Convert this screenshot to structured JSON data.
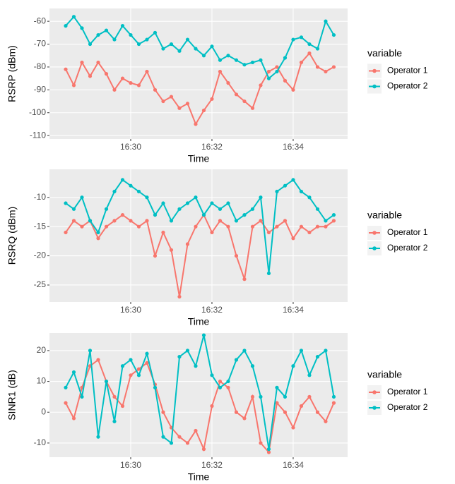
{
  "chart_data": [
    {
      "type": "line",
      "ylabel": "RSRP (dBm)",
      "xlabel": "Time",
      "legend_title": "variable",
      "grid": true,
      "x": [
        988.4,
        988.6,
        988.8,
        989.0,
        989.2,
        989.4,
        989.6,
        989.8,
        990.0,
        990.2,
        990.4,
        990.6,
        990.8,
        991.0,
        991.2,
        991.4,
        991.6,
        991.8,
        992.0,
        992.2,
        992.4,
        992.6,
        992.8,
        993.0,
        993.2,
        993.4,
        993.6,
        993.8,
        994.0,
        994.2,
        994.4,
        994.6,
        994.8,
        995.0
      ],
      "series": [
        {
          "name": "Operator 1",
          "color": "#F8766D",
          "values": [
            -81,
            -88,
            -78,
            -84,
            -78,
            -83,
            -90,
            -85,
            -87,
            -88,
            -82,
            -90,
            -95,
            -93,
            -98,
            -96,
            -105,
            -99,
            -94,
            -82,
            -87,
            -92,
            -95,
            -98,
            -88,
            -82,
            -80,
            -86,
            -90,
            -78,
            -74,
            -80,
            -82,
            -80
          ]
        },
        {
          "name": "Operator 2",
          "color": "#00BFC4",
          "values": [
            -62,
            -58,
            -63,
            -70,
            -66,
            -64,
            -68,
            -62,
            -66,
            -70,
            -68,
            -65,
            -72,
            -70,
            -73,
            -68,
            -72,
            -75,
            -71,
            -77,
            -75,
            -77,
            -79,
            -78,
            -77,
            -85,
            -82,
            -76,
            -68,
            -67,
            -70,
            -72,
            -60,
            -66
          ]
        }
      ],
      "xlim": [
        988.0,
        995.34
      ],
      "xticks": [
        {
          "value": 990,
          "label": "16:30"
        },
        {
          "value": 992,
          "label": "16:32"
        },
        {
          "value": 994,
          "label": "16:34"
        }
      ],
      "ylim": [
        -111.5,
        -54.4
      ],
      "yticks": [
        -110,
        -100,
        -90,
        -80,
        -70,
        -60
      ]
    },
    {
      "type": "line",
      "ylabel": "RSRQ (dBm)",
      "xlabel": "Time",
      "legend_title": "variable",
      "grid": true,
      "x": [
        988.4,
        988.6,
        988.8,
        989.0,
        989.2,
        989.4,
        989.6,
        989.8,
        990.0,
        990.2,
        990.4,
        990.6,
        990.8,
        991.0,
        991.2,
        991.4,
        991.6,
        991.8,
        992.0,
        992.2,
        992.4,
        992.6,
        992.8,
        993.0,
        993.2,
        993.4,
        993.6,
        993.8,
        994.0,
        994.2,
        994.4,
        994.6,
        994.8,
        995.0
      ],
      "series": [
        {
          "name": "Operator 1",
          "color": "#F8766D",
          "values": [
            -16,
            -14,
            -15,
            -14,
            -17,
            -15,
            -14,
            -13,
            -14,
            -15,
            -14,
            -20,
            -16,
            -19,
            -27,
            -18,
            -15,
            -13,
            -16,
            -14,
            -15,
            -20,
            -24,
            -15,
            -14,
            -16,
            -15,
            -14,
            -17,
            -15,
            -16,
            -15,
            -15,
            -14
          ]
        },
        {
          "name": "Operator 2",
          "color": "#00BFC4",
          "values": [
            -11,
            -12,
            -10,
            -14,
            -16,
            -12,
            -9,
            -7,
            -8,
            -9,
            -10,
            -13,
            -11,
            -14,
            -12,
            -11,
            -10,
            -13,
            -11,
            -12,
            -11,
            -14,
            -13,
            -12,
            -10,
            -23,
            -9,
            -8,
            -7,
            -9,
            -10,
            -12,
            -14,
            -13
          ]
        }
      ],
      "xlim": [
        988.0,
        995.34
      ],
      "xticks": [
        {
          "value": 990,
          "label": "16:30"
        },
        {
          "value": 992,
          "label": "16:32"
        },
        {
          "value": 994,
          "label": "16:34"
        }
      ],
      "ylim": [
        -27.9,
        -5.2
      ],
      "yticks": [
        -25,
        -20,
        -15,
        -10
      ]
    },
    {
      "type": "line",
      "ylabel": "SINR1 (dB)",
      "xlabel": "Time",
      "legend_title": "variable",
      "grid": true,
      "x": [
        988.4,
        988.6,
        988.8,
        989.0,
        989.2,
        989.4,
        989.6,
        989.8,
        990.0,
        990.2,
        990.4,
        990.6,
        990.8,
        991.0,
        991.2,
        991.4,
        991.6,
        991.8,
        992.0,
        992.2,
        992.4,
        992.6,
        992.8,
        993.0,
        993.2,
        993.4,
        993.6,
        993.8,
        994.0,
        994.2,
        994.4,
        994.6,
        994.8,
        995.0
      ],
      "series": [
        {
          "name": "Operator 1",
          "color": "#F8766D",
          "values": [
            3,
            -2,
            8,
            15,
            17,
            10,
            5,
            2,
            12,
            14,
            16,
            9,
            0,
            -5,
            -8,
            -10,
            -6,
            -12,
            2,
            10,
            8,
            0,
            -2,
            5,
            -10,
            -13,
            3,
            0,
            -5,
            2,
            5,
            0,
            -3,
            3
          ]
        },
        {
          "name": "Operator 2",
          "color": "#00BFC4",
          "values": [
            8,
            13,
            5,
            20,
            -8,
            10,
            -3,
            15,
            17,
            12,
            19,
            8,
            -8,
            -10,
            18,
            20,
            15,
            25,
            12,
            8,
            10,
            17,
            20,
            15,
            5,
            -12,
            8,
            5,
            15,
            20,
            12,
            18,
            20,
            5
          ]
        }
      ],
      "xlim": [
        988.0,
        995.34
      ],
      "xticks": [
        {
          "value": 990,
          "label": "16:30"
        },
        {
          "value": 992,
          "label": "16:32"
        },
        {
          "value": 994,
          "label": "16:34"
        }
      ],
      "ylim": [
        -14.6,
        25.7
      ],
      "yticks": [
        -10,
        0,
        10,
        20
      ]
    }
  ]
}
